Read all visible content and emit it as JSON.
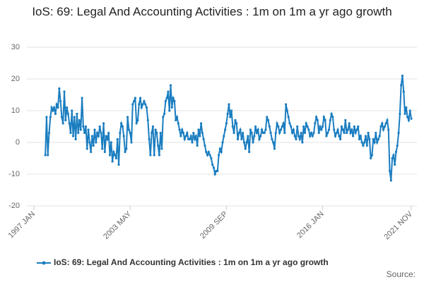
{
  "chart_data": {
    "type": "line",
    "title": "IoS: 69: Legal And Accounting Activities : 1m on 1m a yr ago growth",
    "source": "Source:",
    "categories": [
      "1997 JAN",
      null,
      null,
      null,
      null,
      null,
      null,
      null,
      null,
      null,
      null,
      null,
      null,
      null,
      null,
      null,
      null,
      null,
      null,
      null,
      null,
      null,
      null,
      null,
      null,
      null,
      null,
      null,
      null,
      null,
      null,
      null,
      null,
      null,
      null,
      null,
      null,
      null,
      null,
      null,
      null,
      null,
      null,
      null,
      null,
      null,
      null,
      null,
      null,
      null,
      null,
      null,
      null,
      null,
      null,
      null,
      null,
      null,
      null,
      null,
      null,
      null,
      null,
      null,
      null,
      null,
      null,
      null,
      null,
      null,
      null,
      null,
      null,
      null,
      null,
      null,
      "2003 MAY",
      null,
      null,
      null,
      null,
      null,
      null,
      null,
      null,
      null,
      null,
      null,
      null,
      null,
      null,
      null,
      null,
      null,
      null,
      null,
      null,
      null,
      null,
      null,
      null,
      null,
      null,
      null,
      null,
      null,
      null,
      null,
      null,
      null,
      null,
      null,
      null,
      null,
      null,
      null,
      null,
      null,
      null,
      null,
      null,
      null,
      null,
      null,
      null,
      null,
      null,
      null,
      null,
      null,
      null,
      null,
      null,
      null,
      null,
      null,
      null,
      null,
      null,
      null,
      null,
      null,
      null,
      null,
      null,
      null,
      null,
      null,
      null,
      null,
      null,
      null,
      "2009 SEP",
      null,
      null,
      null,
      null,
      null,
      null,
      null,
      null,
      null,
      null,
      null,
      null,
      null,
      null,
      null,
      null,
      null,
      null,
      null,
      null,
      null,
      null,
      null,
      null,
      null,
      null,
      null,
      null,
      null,
      null,
      null,
      null,
      null,
      null,
      null,
      null,
      null,
      null,
      null,
      null,
      null,
      null,
      null,
      null,
      null,
      null,
      null,
      null,
      null,
      null,
      null,
      null,
      null,
      null,
      null,
      null,
      null,
      null,
      null,
      null,
      null,
      null,
      null,
      null,
      null,
      null,
      null,
      null,
      null,
      null,
      null,
      null,
      null,
      null,
      null,
      "2016 JAN",
      null,
      null,
      null,
      null,
      null,
      null,
      null,
      null,
      null,
      null,
      null,
      null,
      null,
      null,
      null,
      null,
      null,
      null,
      null,
      null,
      null,
      null,
      null,
      null,
      null,
      null,
      null,
      null,
      null,
      null,
      null,
      null,
      null,
      null,
      null,
      null,
      null,
      null,
      null,
      null,
      null,
      null,
      null,
      null,
      null,
      null,
      null,
      null,
      null,
      null,
      null,
      null,
      null,
      null,
      null,
      null,
      null,
      null,
      null,
      null,
      null,
      null,
      null,
      null,
      null,
      null,
      null,
      null,
      null,
      "2021 NOV"
    ],
    "series": [
      {
        "name": "IoS: 69: Legal And Accounting Activities : 1m on 1m a yr ago growth",
        "color": "#1a7dc0",
        "values": [
          null,
          null,
          null,
          null,
          null,
          null,
          null,
          null,
          null,
          -4,
          8,
          -4,
          3,
          8,
          11,
          10,
          11,
          9,
          12,
          11,
          17,
          13,
          8,
          6,
          16,
          7,
          11,
          9,
          6,
          3,
          10,
          2,
          8,
          1,
          9,
          3,
          7,
          4,
          14,
          5,
          3,
          5,
          -2,
          4,
          0,
          -3,
          2,
          -1,
          4,
          0,
          3,
          2,
          5,
          3,
          -2,
          6,
          -3,
          2,
          1,
          3,
          -4,
          0,
          -6,
          -3,
          -4,
          -5,
          1,
          -7,
          3,
          6,
          5,
          2,
          -3,
          -2,
          8,
          4,
          3,
          0,
          12,
          13,
          14,
          6,
          7,
          12,
          14,
          11,
          12,
          13,
          12,
          11,
          7,
          1,
          -4,
          3,
          5,
          -4,
          4,
          3,
          -1,
          -4,
          3,
          -2,
          8,
          9,
          13,
          14,
          16,
          10,
          18,
          11,
          14,
          13,
          7,
          8,
          6,
          4,
          2,
          4,
          3,
          1,
          2,
          3,
          1,
          1,
          2,
          0,
          3,
          1,
          2,
          -1,
          4,
          2,
          6,
          3,
          1,
          -1,
          -3,
          -4,
          -3,
          -4,
          -5,
          -7,
          -8,
          -10,
          -9,
          -9,
          -4,
          -2,
          -3,
          0,
          2,
          4,
          6,
          9,
          12,
          8,
          10,
          5,
          3,
          7,
          6,
          1,
          3,
          4,
          1,
          3,
          0,
          -2,
          0,
          2,
          -3,
          4,
          3,
          0,
          2,
          5,
          3,
          4,
          1,
          2,
          4,
          3,
          3,
          4,
          8,
          7,
          5,
          3,
          1,
          0,
          -2,
          3,
          6,
          5,
          3,
          4,
          5,
          6,
          3,
          12,
          10,
          8,
          6,
          5,
          3,
          4,
          2,
          1,
          5,
          2,
          1,
          3,
          0,
          5,
          3,
          6,
          5,
          4,
          2,
          3,
          2,
          3,
          6,
          8,
          7,
          3,
          5,
          4,
          5,
          8,
          7,
          2,
          3,
          4,
          7,
          9,
          8,
          4,
          2,
          3,
          4,
          2,
          1,
          5,
          4,
          3,
          7,
          3,
          4,
          6,
          3,
          4,
          2,
          5,
          3,
          4,
          5,
          1,
          2,
          0,
          -1,
          0,
          2,
          -1,
          3,
          1,
          -5,
          -4,
          1,
          0,
          3,
          0,
          1,
          2,
          5,
          6,
          4,
          5,
          6,
          7,
          4,
          -9,
          -12,
          -5,
          -4,
          -7,
          -3,
          -1,
          3,
          9,
          18,
          21,
          16,
          9,
          11,
          8,
          7,
          10,
          7.5
        ]
      }
    ],
    "ylim": [
      -20,
      30
    ],
    "yticks": [
      -20,
      -10,
      0,
      10,
      20,
      30
    ],
    "grid": true,
    "legend": "bottom"
  }
}
